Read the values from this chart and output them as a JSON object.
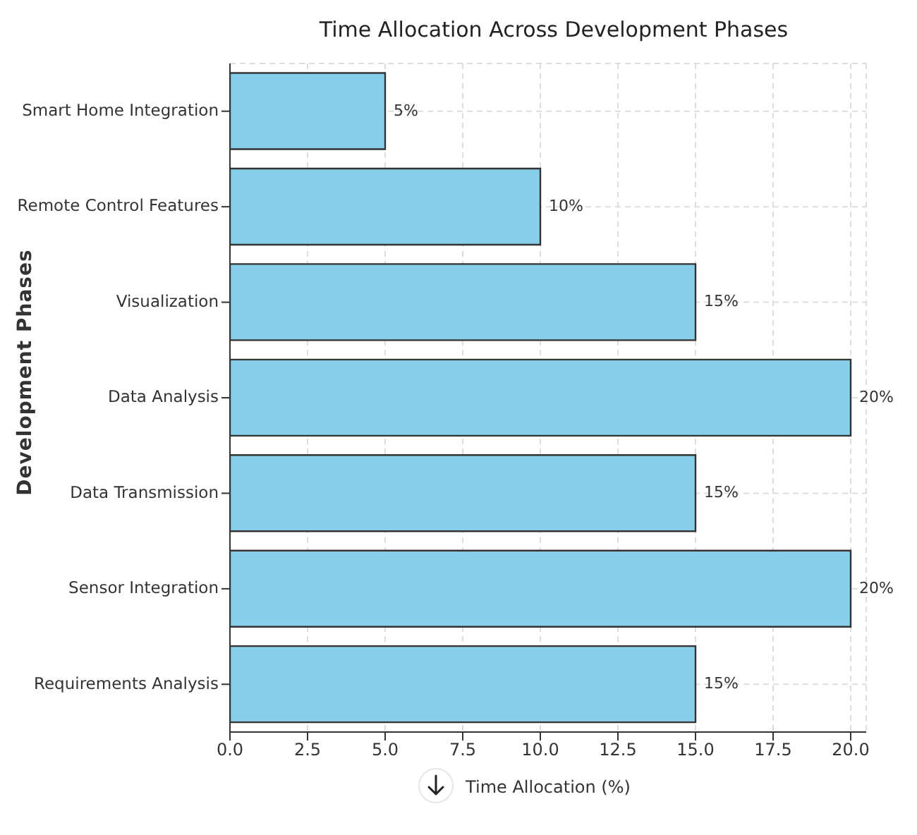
{
  "chart_data": {
    "type": "bar",
    "orientation": "horizontal",
    "title": "Time Allocation Across Development Phases",
    "xlabel": "Time Allocation (%)",
    "ylabel": "Development Phases",
    "categories": [
      "Smart Home Integration",
      "Remote Control Features",
      "Visualization",
      "Data Analysis",
      "Data Transmission",
      "Sensor Integration",
      "Requirements Analysis"
    ],
    "values": [
      5,
      10,
      15,
      20,
      15,
      20,
      15
    ],
    "value_labels": [
      "5%",
      "10%",
      "15%",
      "20%",
      "15%",
      "20%",
      "15%"
    ],
    "color": "#87ceeb",
    "xlim": [
      0,
      20.5
    ],
    "xticks": [
      {
        "value": 0,
        "label": "0.0"
      },
      {
        "value": 2.5,
        "label": "2.5"
      },
      {
        "value": 5,
        "label": "5.0"
      },
      {
        "value": 7.5,
        "label": "7.5"
      },
      {
        "value": 10,
        "label": "10.0"
      },
      {
        "value": 12.5,
        "label": "12.5"
      },
      {
        "value": 15,
        "label": "15.0"
      },
      {
        "value": 17.5,
        "label": "17.5"
      },
      {
        "value": 20,
        "label": "20.0"
      }
    ],
    "grid": true
  }
}
